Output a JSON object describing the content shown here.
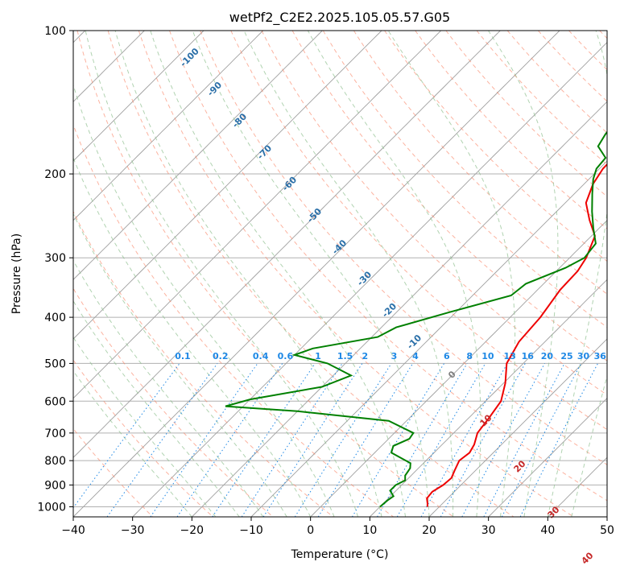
{
  "chart_data": {
    "type": "line",
    "title": "wetPf2_C2E2.2025.105.05.57.G05",
    "xlabel": "Temperature (°C)",
    "ylabel": "Pressure (hPa)",
    "xlim": [
      -40,
      50
    ],
    "ylim": [
      1050,
      100
    ],
    "y_scale": "log",
    "x_ticks": [
      -40,
      -30,
      -20,
      -10,
      0,
      10,
      20,
      30,
      40,
      50
    ],
    "y_ticks": [
      100,
      200,
      300,
      400,
      500,
      600,
      700,
      800,
      900,
      1000
    ],
    "grid": "horizontal at pressure ticks",
    "colors": {
      "temperature": "#ee0000",
      "dewpoint": "#008000",
      "isotherm": "#a0a0a0",
      "dry_adiabat": "#fa8060",
      "moist_adiabat": "#90c090",
      "mixing_ratio": "#1e88e5",
      "dry_adiabat_label": "#2a6fa8",
      "moist_label": "#c62828",
      "mixing_label": "#1e88e5"
    },
    "series": [
      {
        "key": "temperature",
        "values": [
          [
            1000,
            18.0
          ],
          [
            985,
            17.5
          ],
          [
            960,
            16.5
          ],
          [
            930,
            16.3
          ],
          [
            900,
            17.0
          ],
          [
            870,
            17.2
          ],
          [
            840,
            16.5
          ],
          [
            800,
            15.6
          ],
          [
            770,
            16.0
          ],
          [
            740,
            15.4
          ],
          [
            700,
            14.0
          ],
          [
            650,
            13.4
          ],
          [
            600,
            12.6
          ],
          [
            550,
            10.3
          ],
          [
            500,
            7.2
          ],
          [
            450,
            5.6
          ],
          [
            400,
            5.1
          ],
          [
            350,
            3.8
          ],
          [
            320,
            3.6
          ],
          [
            300,
            2.8
          ],
          [
            270,
            0.6
          ],
          [
            250,
            -3.0
          ],
          [
            230,
            -6.5
          ],
          [
            210,
            -8.5
          ],
          [
            195,
            -9.4
          ],
          [
            180,
            -9.5
          ],
          [
            165,
            -8.8
          ],
          [
            150,
            -10.0
          ],
          [
            135,
            -12.3
          ],
          [
            120,
            -16.4
          ],
          [
            110,
            -18.8
          ],
          [
            100,
            -20.5
          ]
        ]
      },
      {
        "key": "dewpoint",
        "values": [
          [
            1000,
            10.0
          ],
          [
            970,
            10.2
          ],
          [
            950,
            10.5
          ],
          [
            925,
            9.0
          ],
          [
            900,
            9.0
          ],
          [
            880,
            9.8
          ],
          [
            860,
            9.0
          ],
          [
            830,
            8.6
          ],
          [
            810,
            7.8
          ],
          [
            770,
            2.8
          ],
          [
            745,
            2.0
          ],
          [
            720,
            3.5
          ],
          [
            700,
            3.2
          ],
          [
            660,
            -3.0
          ],
          [
            630,
            -20.0
          ],
          [
            615,
            -33.0
          ],
          [
            595,
            -30.0
          ],
          [
            560,
            -20.0
          ],
          [
            530,
            -17.0
          ],
          [
            500,
            -23.0
          ],
          [
            480,
            -30.0
          ],
          [
            465,
            -28.0
          ],
          [
            440,
            -19.0
          ],
          [
            420,
            -17.5
          ],
          [
            390,
            -11.0
          ],
          [
            360,
            -3.5
          ],
          [
            340,
            -3.0
          ],
          [
            315,
            1.0
          ],
          [
            300,
            2.5
          ],
          [
            280,
            2.0
          ],
          [
            260,
            -1.0
          ],
          [
            240,
            -4.0
          ],
          [
            220,
            -7.0
          ],
          [
            205,
            -9.3
          ],
          [
            195,
            -10.5
          ],
          [
            185,
            -10.8
          ],
          [
            175,
            -14.0
          ],
          [
            165,
            -14.8
          ],
          [
            150,
            -15.5
          ],
          [
            140,
            -17.5
          ],
          [
            120,
            -21.3
          ],
          [
            110,
            -22.8
          ],
          [
            100,
            -23.5
          ]
        ]
      }
    ],
    "dry_adiabat_labels": [
      "-100",
      "-90",
      "-80",
      "-70",
      "-60",
      "-50",
      "-40",
      "-30",
      "-20",
      "-10"
    ],
    "moist_adiabat_labels": [
      "0",
      "10",
      "20",
      "30",
      "40"
    ],
    "mixing_ratio_labels": [
      "0.1",
      "0.2",
      "0.4",
      "0.6",
      "1",
      "1.5",
      "2",
      "3",
      "4",
      "6",
      "8",
      "10",
      "13",
      "16",
      "20",
      "25",
      "30",
      "36"
    ]
  }
}
